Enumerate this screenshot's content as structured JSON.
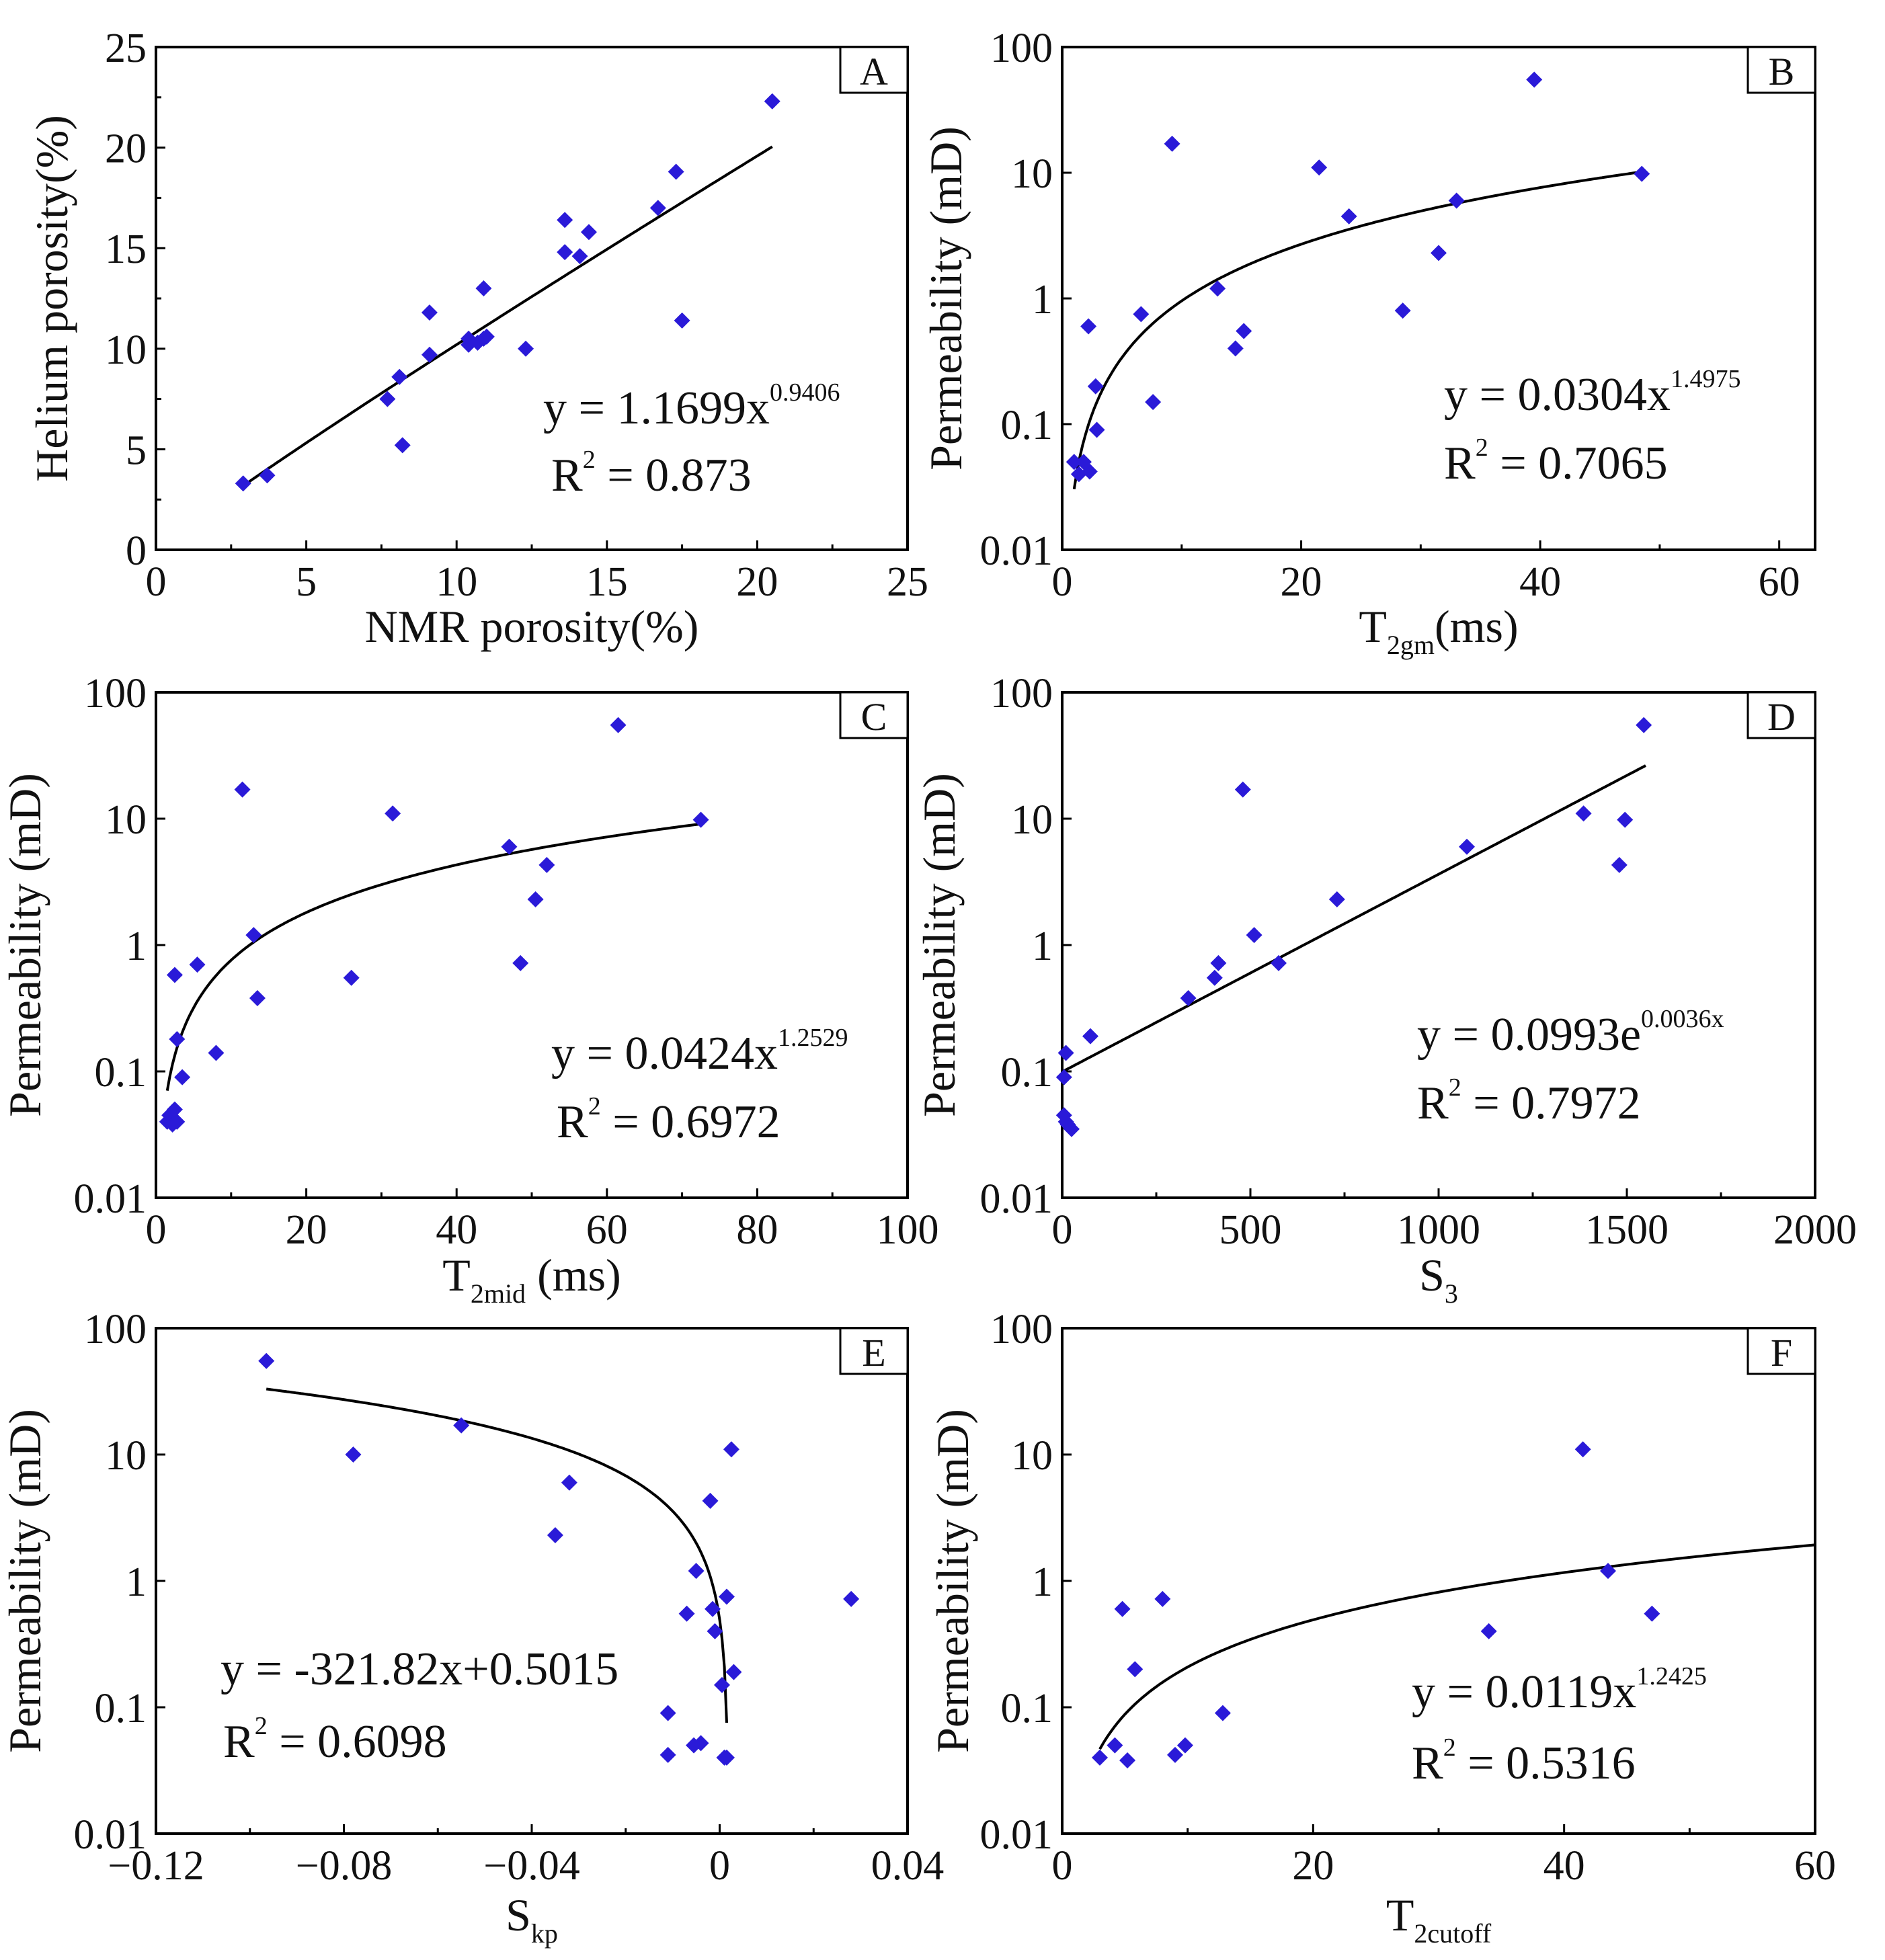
{
  "figure": {
    "colors": {
      "marker": "#2a1ad8",
      "line": "#000000",
      "frame": "#000000"
    }
  },
  "chart_data": [
    {
      "id": "A",
      "type": "scatter",
      "panel_label": "A",
      "xlabel": "NMR porosity(%)",
      "ylabel": "Helium porosity(%)",
      "xlim": [
        0,
        25
      ],
      "ylim": [
        0,
        25
      ],
      "yscale": "linear",
      "xticks": [
        0,
        5,
        10,
        15,
        20,
        25
      ],
      "yticks": [
        0,
        5,
        10,
        15,
        20,
        25
      ],
      "xtick_labels": [
        "0",
        "5",
        "10",
        "15",
        "20",
        "25"
      ],
      "ytick_labels": [
        "0",
        "5",
        "10",
        "15",
        "20",
        "25"
      ],
      "points": [
        [
          2.9,
          3.3
        ],
        [
          3.7,
          3.7
        ],
        [
          7.7,
          7.5
        ],
        [
          8.1,
          8.6
        ],
        [
          8.2,
          5.2
        ],
        [
          9.1,
          9.7
        ],
        [
          9.1,
          11.8
        ],
        [
          10.4,
          10.2
        ],
        [
          10.4,
          10.5
        ],
        [
          10.7,
          10.3
        ],
        [
          10.9,
          10.5
        ],
        [
          10.9,
          13.0
        ],
        [
          11.0,
          10.6
        ],
        [
          12.3,
          10.0
        ],
        [
          13.6,
          14.8
        ],
        [
          13.6,
          16.4
        ],
        [
          14.1,
          14.6
        ],
        [
          14.4,
          15.8
        ],
        [
          16.7,
          17.0
        ],
        [
          17.3,
          18.8
        ],
        [
          17.5,
          11.4
        ],
        [
          20.5,
          22.3
        ]
      ],
      "fit": {
        "kind": "power",
        "a": 1.1699,
        "b": 0.9406,
        "x_range": [
          2.9,
          20.5
        ]
      },
      "equation": {
        "prefix": "y = 1.1699x",
        "sup": "0.9406",
        "r2_prefix": "R",
        "r2_sup": "2",
        "r2_value": " = 0.873"
      }
    },
    {
      "id": "B",
      "type": "scatter",
      "panel_label": "B",
      "xlabel_main": "T",
      "xlabel_sub": "2gm",
      "xlabel_tail": "(ms)",
      "ylabel": "Permeability (mD)",
      "xlim": [
        0,
        63
      ],
      "ylim": [
        0.01,
        100
      ],
      "yscale": "log",
      "xticks": [
        0,
        20,
        40,
        60
      ],
      "xtick_labels": [
        "0",
        "20",
        "40",
        "60"
      ],
      "yticks": [
        0.01,
        0.1,
        1,
        10,
        100
      ],
      "ytick_labels": [
        "0.01",
        "0.1",
        "1",
        "10",
        "100"
      ],
      "points": [
        [
          1.0,
          0.05
        ],
        [
          1.4,
          0.04
        ],
        [
          1.8,
          0.05
        ],
        [
          2.3,
          0.042
        ],
        [
          2.2,
          0.6
        ],
        [
          2.8,
          0.2
        ],
        [
          2.9,
          0.09
        ],
        [
          6.6,
          0.75
        ],
        [
          7.6,
          0.15
        ],
        [
          9.2,
          17
        ],
        [
          13.0,
          1.2
        ],
        [
          14.5,
          0.4
        ],
        [
          15.2,
          0.55
        ],
        [
          21.5,
          11
        ],
        [
          24.0,
          4.5
        ],
        [
          28.5,
          0.8
        ],
        [
          31.5,
          2.3
        ],
        [
          33.0,
          6.0
        ],
        [
          39.5,
          55
        ],
        [
          48.5,
          9.8
        ]
      ],
      "fit": {
        "kind": "power",
        "a": 0.0304,
        "b": 1.4975,
        "x_range": [
          1.0,
          48.5
        ]
      },
      "equation": {
        "prefix": "y = 0.0304x",
        "sup": "1.4975",
        "r2_prefix": "R",
        "r2_sup": "2",
        "r2_value": " = 0.7065"
      }
    },
    {
      "id": "C",
      "type": "scatter",
      "panel_label": "C",
      "xlabel_main": "T",
      "xlabel_sub": "2mid",
      "xlabel_tail": " (ms)",
      "ylabel": "Permeability (mD)",
      "xlim": [
        0,
        100
      ],
      "ylim": [
        0.01,
        100
      ],
      "yscale": "log",
      "xticks": [
        0,
        20,
        40,
        60,
        80,
        100
      ],
      "xtick_labels": [
        "0",
        "20",
        "40",
        "60",
        "80",
        "100"
      ],
      "yticks": [
        0.01,
        0.1,
        1,
        10,
        100
      ],
      "ytick_labels": [
        "0.01",
        "0.1",
        "1",
        "10",
        "100"
      ],
      "points": [
        [
          1.5,
          0.04
        ],
        [
          1.8,
          0.045
        ],
        [
          2.2,
          0.038
        ],
        [
          2.5,
          0.05
        ],
        [
          2.8,
          0.04
        ],
        [
          2.5,
          0.58
        ],
        [
          2.8,
          0.18
        ],
        [
          3.5,
          0.09
        ],
        [
          5.5,
          0.7
        ],
        [
          8.0,
          0.14
        ],
        [
          11.5,
          17
        ],
        [
          13.0,
          1.2
        ],
        [
          13.5,
          0.38
        ],
        [
          26.0,
          0.55
        ],
        [
          31.5,
          11
        ],
        [
          47.0,
          6.0
        ],
        [
          48.5,
          0.72
        ],
        [
          50.5,
          2.3
        ],
        [
          52.0,
          4.3
        ],
        [
          61.5,
          55
        ],
        [
          72.5,
          9.8
        ]
      ],
      "fit": {
        "kind": "power",
        "a": 0.0424,
        "b": 1.2529,
        "x_range": [
          1.5,
          72.5
        ]
      },
      "equation": {
        "prefix": "y = 0.0424x",
        "sup": "1.2529",
        "r2_prefix": "R",
        "r2_sup": "2",
        "r2_value": " = 0.6972"
      }
    },
    {
      "id": "D",
      "type": "scatter",
      "panel_label": "D",
      "xlabel_main": "S",
      "xlabel_sub": "3",
      "xlabel_tail": "",
      "ylabel": "Permeability (mD)",
      "xlim": [
        0,
        2000
      ],
      "ylim": [
        0.01,
        100
      ],
      "yscale": "log",
      "xticks": [
        0,
        500,
        1000,
        1500,
        2000
      ],
      "xtick_labels": [
        "0",
        "500",
        "1000",
        "1500",
        "2000"
      ],
      "yticks": [
        0.01,
        0.1,
        1,
        10,
        100
      ],
      "ytick_labels": [
        "0.01",
        "0.1",
        "1",
        "10",
        "100"
      ],
      "points": [
        [
          5,
          0.09
        ],
        [
          5,
          0.045
        ],
        [
          10,
          0.04
        ],
        [
          15,
          0.038
        ],
        [
          25,
          0.035
        ],
        [
          10,
          0.14
        ],
        [
          75,
          0.19
        ],
        [
          335,
          0.38
        ],
        [
          405,
          0.55
        ],
        [
          415,
          0.72
        ],
        [
          480,
          17
        ],
        [
          510,
          1.2
        ],
        [
          575,
          0.72
        ],
        [
          730,
          2.3
        ],
        [
          1075,
          6.0
        ],
        [
          1385,
          11
        ],
        [
          1480,
          4.3
        ],
        [
          1495,
          9.8
        ],
        [
          1545,
          55
        ]
      ],
      "fit": {
        "kind": "exponential",
        "a": 0.0993,
        "b": 0.0036,
        "x_range": [
          5,
          1550
        ]
      },
      "equation": {
        "prefix": "y = 0.0993e",
        "sup": "0.0036x",
        "r2_prefix": "R",
        "r2_sup": "2",
        "r2_value": " = 0.7972"
      }
    },
    {
      "id": "E",
      "type": "scatter",
      "panel_label": "E",
      "xlabel_main": "S",
      "xlabel_sub": "kp",
      "xlabel_tail": "",
      "ylabel": "Permeability (mD)",
      "xlim": [
        -0.12,
        0.04
      ],
      "ylim": [
        0.01,
        100
      ],
      "yscale": "log",
      "xticks": [
        -0.12,
        -0.08,
        -0.04,
        0,
        0.04
      ],
      "xtick_labels": [
        "−0.12",
        "−0.08",
        "−0.04",
        "0",
        "0.04"
      ],
      "yticks": [
        0.01,
        0.1,
        1,
        10,
        100
      ],
      "ytick_labels": [
        "0.01",
        "0.1",
        "1",
        "10",
        "100"
      ],
      "points": [
        [
          -0.0965,
          55
        ],
        [
          -0.078,
          10
        ],
        [
          -0.055,
          17
        ],
        [
          -0.032,
          6.0
        ],
        [
          -0.035,
          2.3
        ],
        [
          -0.011,
          0.09
        ],
        [
          -0.011,
          0.042
        ],
        [
          -0.007,
          0.55
        ],
        [
          -0.0055,
          0.05
        ],
        [
          -0.005,
          1.2
        ],
        [
          -0.004,
          0.052
        ],
        [
          -0.002,
          4.3
        ],
        [
          -0.0015,
          0.6
        ],
        [
          -0.001,
          0.4
        ],
        [
          0.0005,
          0.15
        ],
        [
          0.001,
          0.04
        ],
        [
          0.0015,
          0.75
        ],
        [
          0.0015,
          0.04
        ],
        [
          0.0025,
          11
        ],
        [
          0.003,
          0.19
        ],
        [
          0.028,
          0.72
        ]
      ],
      "fit": {
        "kind": "curve",
        "a": -321.82,
        "b": 0.5015,
        "x_range": [
          -0.0965,
          0.0015
        ]
      },
      "equation": {
        "prefix": "y = -321.82x+0.5015",
        "sup": "",
        "r2_prefix": "R",
        "r2_sup": "2",
        "r2_value": " = 0.6098"
      }
    },
    {
      "id": "F",
      "type": "scatter",
      "panel_label": "F",
      "xlabel_main": "T",
      "xlabel_sub": "2cutoff",
      "xlabel_tail": "",
      "ylabel": "Permeability (mD)",
      "xlim": [
        0,
        60
      ],
      "ylim": [
        0.01,
        100
      ],
      "yscale": "log",
      "xticks": [
        0,
        20,
        40,
        60
      ],
      "xtick_labels": [
        "0",
        "20",
        "40",
        "60"
      ],
      "yticks": [
        0.01,
        0.1,
        1,
        10,
        100
      ],
      "ytick_labels": [
        "0.01",
        "0.1",
        "1",
        "10",
        "100"
      ],
      "points": [
        [
          3.0,
          0.04
        ],
        [
          4.2,
          0.05
        ],
        [
          4.8,
          0.6
        ],
        [
          5.2,
          0.038
        ],
        [
          5.8,
          0.2
        ],
        [
          8.0,
          0.72
        ],
        [
          9.0,
          0.042
        ],
        [
          9.8,
          0.05
        ],
        [
          12.8,
          0.09
        ],
        [
          34.0,
          0.4
        ],
        [
          41.5,
          11
        ],
        [
          43.5,
          1.2
        ],
        [
          47.0,
          0.55
        ]
      ],
      "fit": {
        "kind": "power",
        "a": 0.0119,
        "b": 1.2425,
        "x_range": [
          3.0,
          60
        ]
      },
      "equation": {
        "prefix": "y = 0.0119x",
        "sup": "1.2425",
        "r2_prefix": "R",
        "r2_sup": "2",
        "r2_value": " = 0.5316"
      }
    }
  ]
}
